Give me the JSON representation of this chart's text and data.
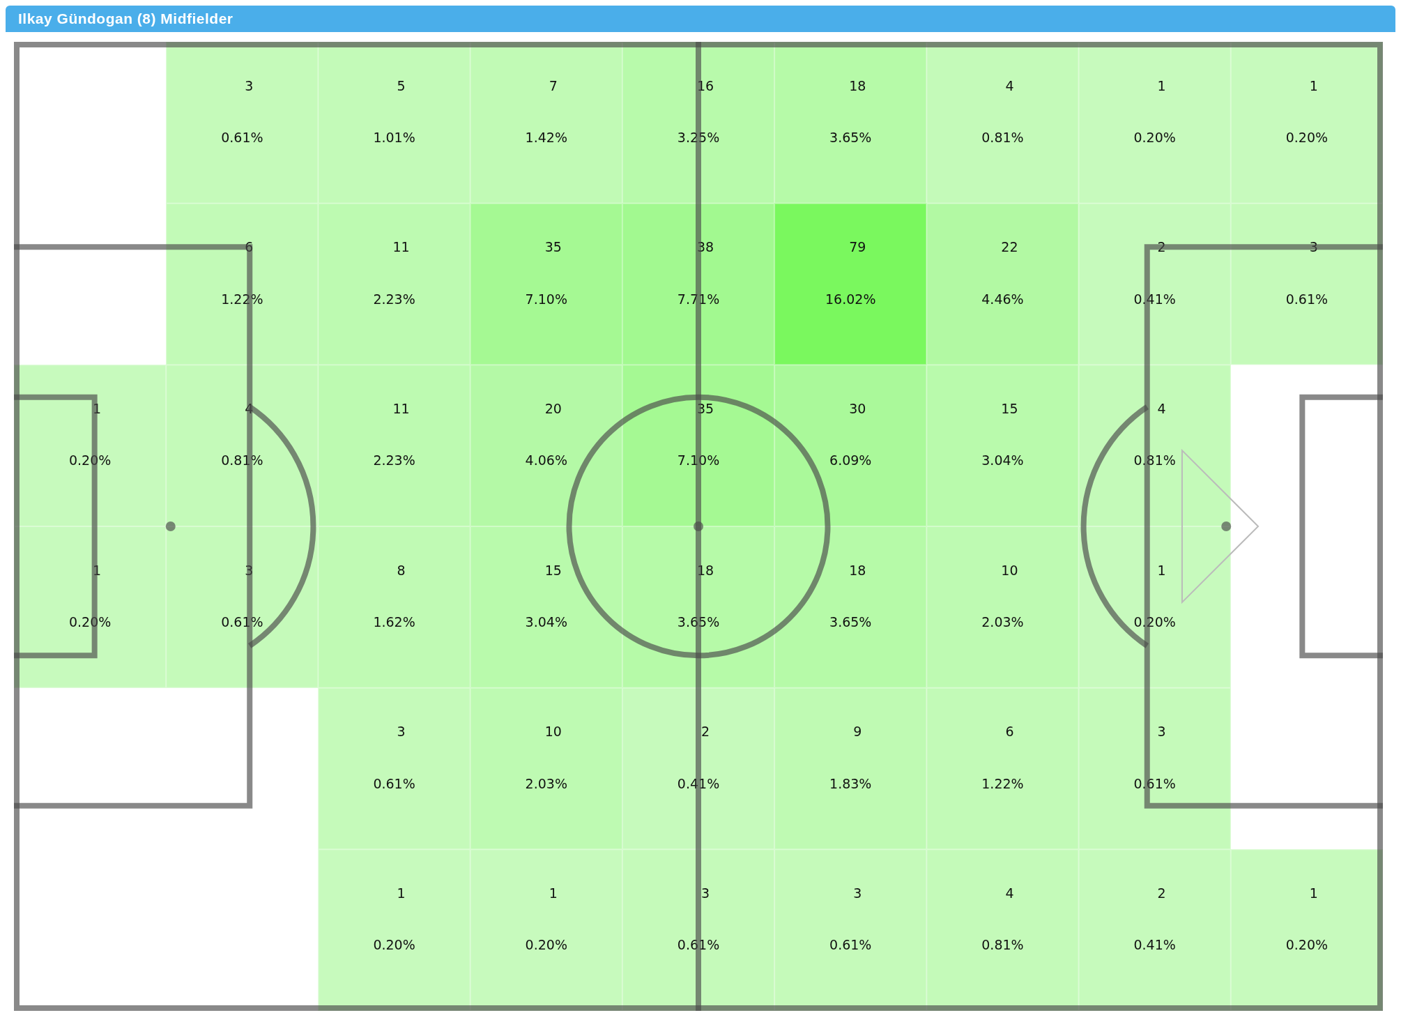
{
  "chart_data": {
    "type": "heatmap",
    "title": "Ilkay Gündogan (8) Midfielder",
    "data_labels": true,
    "categories": [
      null,
      null,
      null,
      null,
      null,
      null,
      null,
      null,
      null
    ],
    "y_categories": [
      null,
      null,
      null,
      null,
      null,
      null
    ],
    "cells": [
      [
        null,
        3,
        5,
        7,
        16,
        18,
        4,
        1,
        1
      ],
      [
        null,
        6,
        11,
        35,
        38,
        79,
        22,
        2,
        3
      ],
      [
        1,
        4,
        11,
        20,
        35,
        30,
        15,
        4,
        null
      ],
      [
        1,
        3,
        8,
        15,
        18,
        18,
        10,
        1,
        null
      ],
      [
        null,
        null,
        3,
        10,
        2,
        9,
        6,
        3,
        null
      ],
      [
        null,
        null,
        1,
        1,
        3,
        3,
        4,
        2,
        1
      ]
    ],
    "annotations": [
      "0.61%",
      "1.01%",
      "1.42%",
      "3.25%",
      "3.65%",
      "0.81%",
      "0.20%",
      "0.20%",
      "1.22%",
      "2.23%",
      "7.10%",
      "7.71%",
      "16.02%",
      "4.46%",
      "0.41%",
      "0.61%",
      "0.20%",
      "0.81%",
      "2.23%",
      "4.06%",
      "7.10%",
      "6.09%",
      "3.04%",
      "0.81%",
      "0.20%",
      "0.61%",
      "1.62%",
      "3.04%",
      "3.65%",
      "3.65%",
      "2.03%",
      "0.20%",
      "0.61%",
      "2.03%",
      "0.41%",
      "1.83%",
      "1.22%",
      "0.61%",
      "0.20%",
      "0.20%",
      "0.61%",
      "0.61%",
      "0.81%",
      "0.41%",
      "0.20%"
    ]
  }
}
